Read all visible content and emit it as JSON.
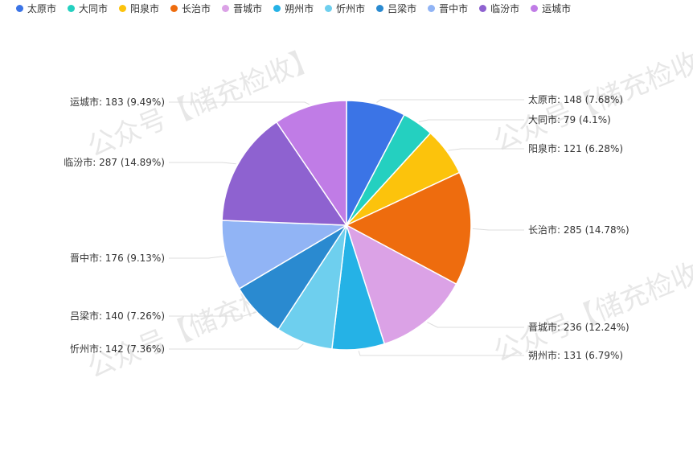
{
  "chart_data": {
    "type": "pie",
    "title": "",
    "legend_position": "top-left",
    "slices": [
      {
        "label": "太原市",
        "value": 148,
        "percent": "7.68%",
        "color": "#3b74e6"
      },
      {
        "label": "大同市",
        "value": 79,
        "percent": "4.1%",
        "color": "#24d0c0"
      },
      {
        "label": "阳泉市",
        "value": 121,
        "percent": "6.28%",
        "color": "#fcc30c"
      },
      {
        "label": "长治市",
        "value": 285,
        "percent": "14.78%",
        "color": "#ee6c0e"
      },
      {
        "label": "晋城市",
        "value": 236,
        "percent": "12.24%",
        "color": "#dba2e6"
      },
      {
        "label": "朔州市",
        "value": 131,
        "percent": "6.79%",
        "color": "#25b2e6"
      },
      {
        "label": "忻州市",
        "value": 142,
        "percent": "7.36%",
        "color": "#6ecfee"
      },
      {
        "label": "吕梁市",
        "value": 140,
        "percent": "7.26%",
        "color": "#2a8ad0"
      },
      {
        "label": "晋中市",
        "value": 176,
        "percent": "9.13%",
        "color": "#91b4f5"
      },
      {
        "label": "临汾市",
        "value": 287,
        "percent": "14.89%",
        "color": "#8e62d0"
      },
      {
        "label": "运城市",
        "value": 183,
        "percent": "9.49%",
        "color": "#c07ce6"
      }
    ]
  },
  "watermark": "公众号【储充检收】"
}
